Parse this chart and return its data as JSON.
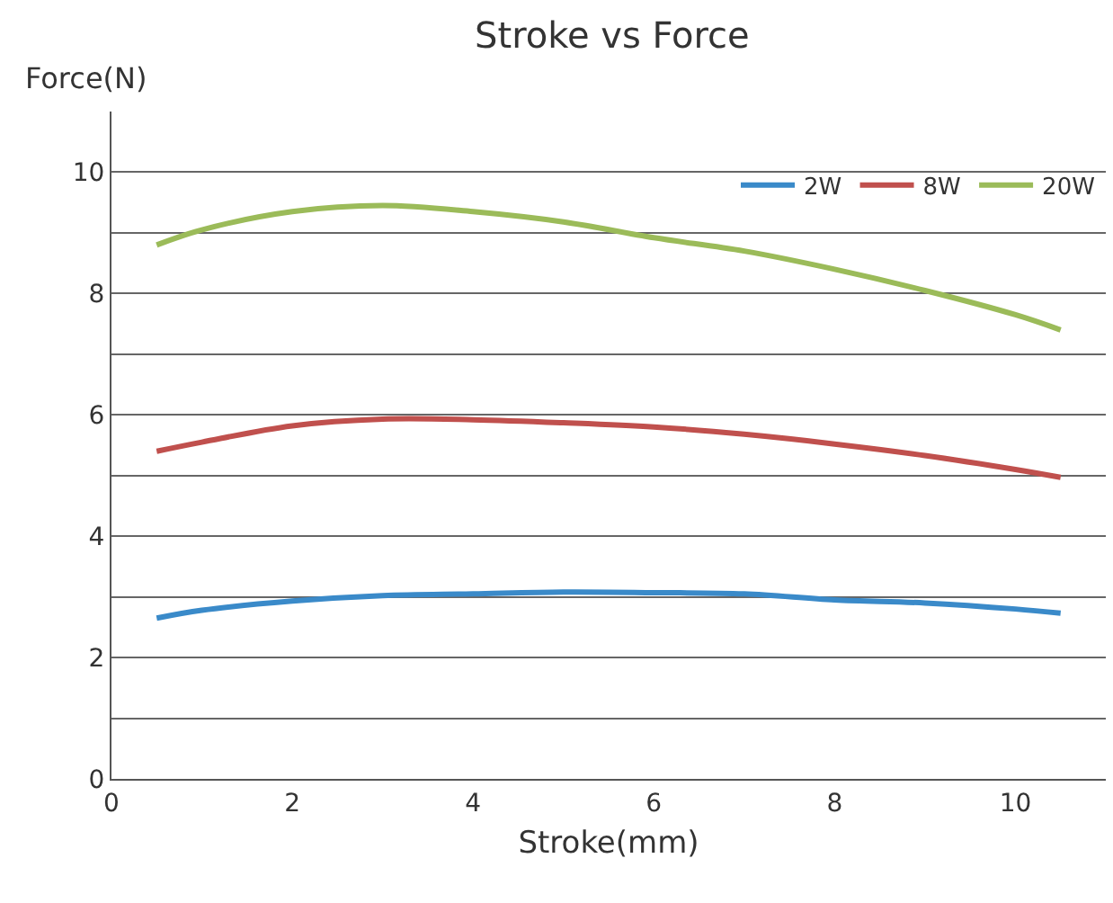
{
  "chart_data": {
    "type": "line",
    "title": "Stroke vs Force",
    "xlabel": "Stroke(mm)",
    "ylabel": "Force(N)",
    "xlim": [
      0,
      11
    ],
    "xticks": [
      0,
      2,
      4,
      6,
      8,
      10
    ],
    "ylim": [
      0,
      11
    ],
    "yticks": [
      0,
      {
        "value": 1,
        "label": null
      },
      2,
      {
        "value": 3,
        "label": null
      },
      4,
      {
        "value": 5,
        "label": null
      },
      6,
      {
        "value": 7,
        "label": null
      },
      8,
      {
        "value": 9,
        "label": null
      },
      10
    ],
    "grid": "y",
    "legend": "top right",
    "marker": "none",
    "line_style": "solid",
    "x": [
      0.5,
      1,
      2,
      3,
      4,
      5,
      6,
      7,
      8,
      9,
      10,
      10.5
    ],
    "series": [
      {
        "name": "2W",
        "color": "#3a8ac9",
        "values": [
          2.65,
          2.78,
          2.93,
          3.02,
          3.05,
          3.08,
          3.07,
          3.05,
          2.95,
          2.9,
          2.8,
          2.73
        ]
      },
      {
        "name": "8W",
        "color": "#c0504d",
        "values": [
          5.4,
          5.55,
          5.82,
          5.93,
          5.92,
          5.87,
          5.8,
          5.68,
          5.52,
          5.33,
          5.1,
          4.97
        ]
      },
      {
        "name": "20W",
        "color": "#9bbb59",
        "values": [
          8.8,
          9.05,
          9.35,
          9.45,
          9.35,
          9.18,
          8.92,
          8.7,
          8.4,
          8.05,
          7.65,
          7.4
        ]
      }
    ]
  }
}
